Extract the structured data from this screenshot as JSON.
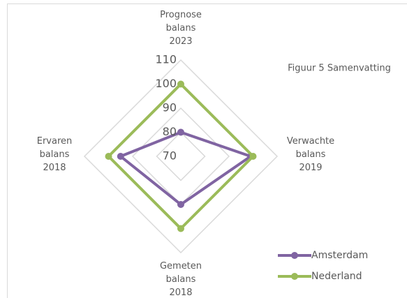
{
  "chart_data": {
    "type": "radar",
    "title": "Figuur 5 Samenvatting",
    "categories": [
      "Prognose balans 2023",
      "Verwachte balans 2019",
      "Gemeten balans 2018",
      "Ervaren balans 2018"
    ],
    "series": [
      {
        "name": "Amsterdam",
        "color": "#8064a2",
        "values": [
          80,
          99,
          90,
          95
        ]
      },
      {
        "name": "Nederland",
        "color": "#9bbb59",
        "values": [
          100,
          100,
          100,
          100
        ]
      }
    ],
    "ylim": [
      70,
      110
    ],
    "yticks": [
      70,
      80,
      90,
      100,
      110
    ],
    "grid": true,
    "legend": "lower right"
  }
}
